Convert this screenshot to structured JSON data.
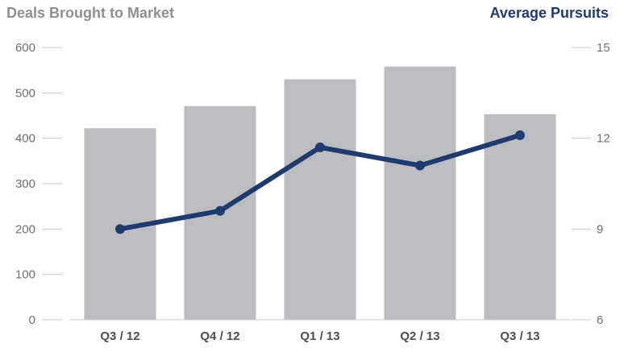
{
  "chart_data": {
    "type": "bar",
    "left_axis_title": "Deals Brought to Market",
    "right_axis_title": "Average Pursuits",
    "categories": [
      "Q3 / 12",
      "Q4 / 12",
      "Q1 / 13",
      "Q2 / 13",
      "Q3 / 13"
    ],
    "series": [
      {
        "type": "bar",
        "axis": "left",
        "values": [
          422,
          471,
          530,
          558,
          453
        ]
      },
      {
        "type": "line",
        "axis": "right",
        "values": [
          9.0,
          9.6,
          11.7,
          11.1,
          12.1
        ]
      }
    ],
    "ylim_left": [
      0,
      600
    ],
    "yticks_left": [
      0,
      100,
      200,
      300,
      400,
      500,
      600
    ],
    "ylim_right": [
      6,
      15
    ],
    "yticks_right": [
      6,
      9,
      12,
      15
    ],
    "legend": "none",
    "grid": false,
    "colors": {
      "bar": "#bcbdc0",
      "line": "#1f3a6d",
      "left_title": "#8e8f92",
      "right_title": "#1f3a6d"
    }
  }
}
